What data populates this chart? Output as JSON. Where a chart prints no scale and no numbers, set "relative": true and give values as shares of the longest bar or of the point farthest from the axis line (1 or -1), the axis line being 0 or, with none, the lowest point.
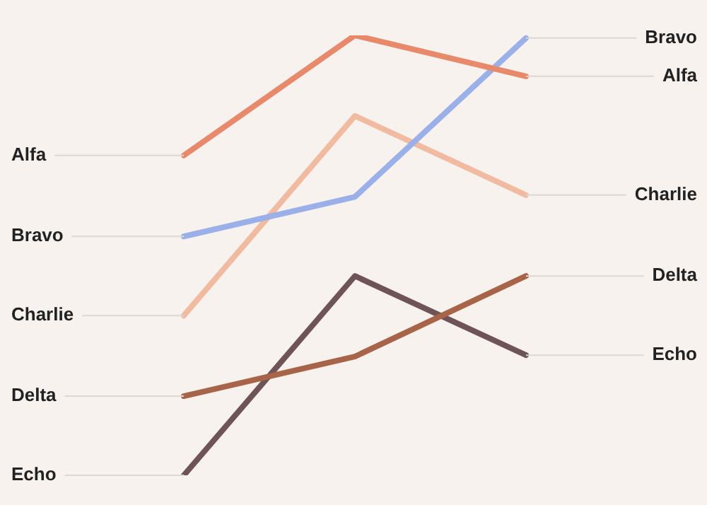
{
  "chart_data": {
    "type": "line",
    "relative": true,
    "legend": false,
    "marker": "none",
    "categories": [
      null,
      null,
      null
    ],
    "series": [
      {
        "name": "Alfa",
        "color": "#e8896c",
        "values": [
          0.727,
          1,
          0.907
        ]
      },
      {
        "name": "Bravo",
        "color": "#9bb0e8",
        "values": [
          0.543,
          0.633,
          0.994
        ]
      },
      {
        "name": "Charlie",
        "color": "#f0bba0",
        "values": [
          0.363,
          0.817,
          0.637
        ]
      },
      {
        "name": "Delta",
        "color": "#a86448",
        "values": [
          0.18,
          0.27,
          0.453
        ]
      },
      {
        "name": "Echo",
        "color": "#6e5458",
        "values": [
          0,
          0.453,
          0.273
        ]
      }
    ]
  }
}
